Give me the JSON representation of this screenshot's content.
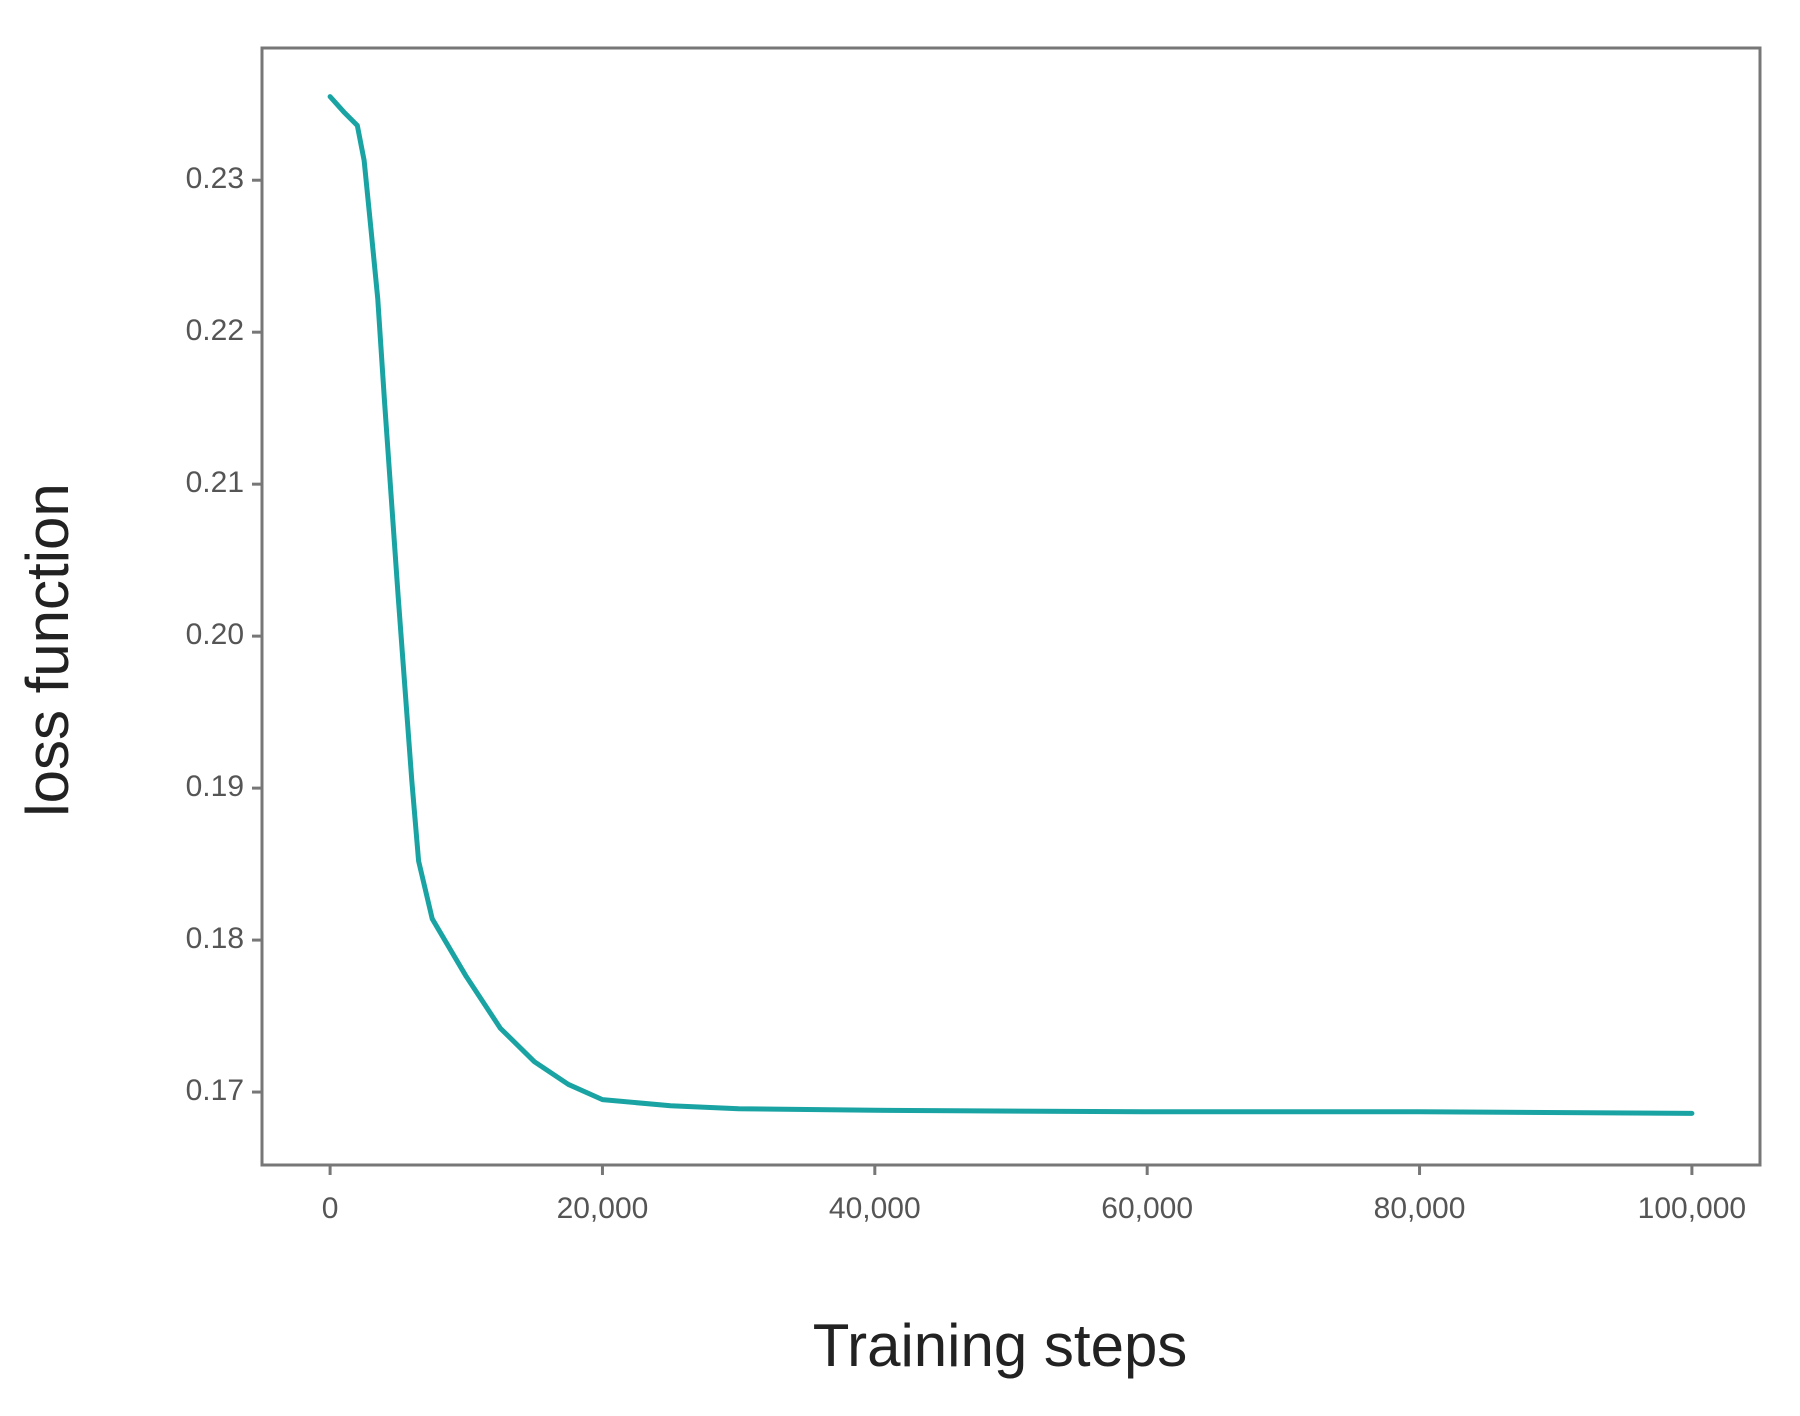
{
  "chart_data": {
    "type": "line",
    "x_label": "Training steps",
    "y_label": "loss function",
    "x": [
      0,
      1000,
      2000,
      2500,
      3000,
      3500,
      4000,
      5000,
      6000,
      6500,
      7500,
      10000,
      12500,
      15000,
      17500,
      20000,
      25000,
      30000,
      40000,
      60000,
      80000,
      100000
    ],
    "series": [
      {
        "name": "loss",
        "color": "#1aa3a3",
        "values": [
          0.2355,
          0.2345,
          0.2336,
          0.2313,
          0.2268,
          0.2222,
          0.2154,
          0.2026,
          0.1905,
          0.1852,
          0.1814,
          0.1776,
          0.1742,
          0.172,
          0.1705,
          0.1695,
          0.1691,
          0.1689,
          0.1688,
          0.1687,
          0.1687,
          0.1686
        ]
      }
    ],
    "xlim": [
      -5000,
      105000
    ],
    "xticks": [
      0,
      {
        "value": 20000,
        "label": "20,000"
      },
      {
        "value": 40000,
        "label": "40,000"
      },
      {
        "value": 60000,
        "label": "60,000"
      },
      {
        "value": 80000,
        "label": "80,000"
      },
      {
        "value": 100000,
        "label": "100,000"
      }
    ],
    "ylim": [
      0.1652,
      0.2387
    ],
    "yticks": [
      0.17,
      0.18,
      0.19,
      {
        "value": 0.2,
        "label": "0.20"
      },
      0.21,
      0.22,
      0.23
    ],
    "grid": false
  }
}
